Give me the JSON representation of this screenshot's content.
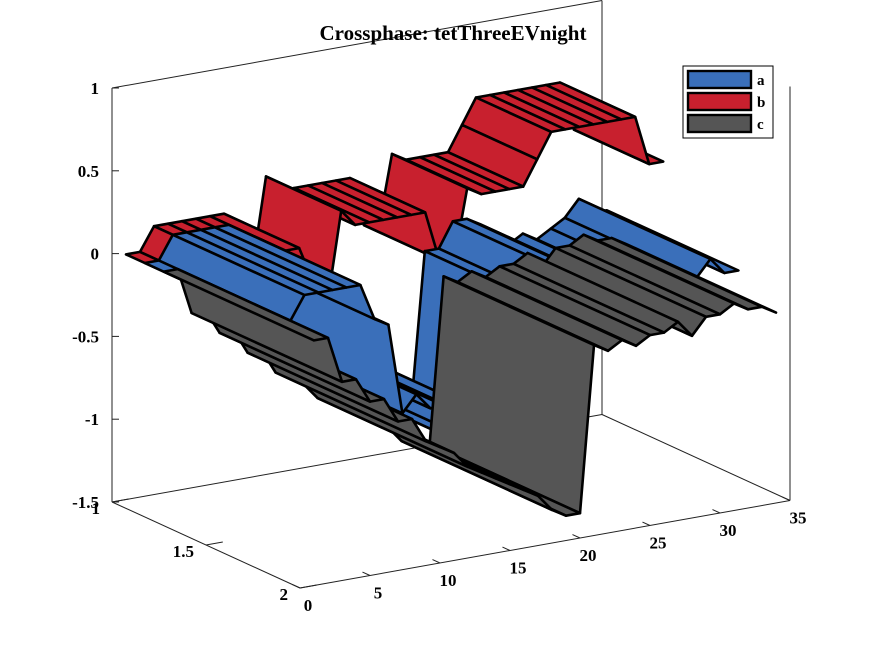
{
  "chart_data": {
    "type": "ribbon3d",
    "title": "Crossphase: tetThreeEVnight",
    "xlabel": "",
    "ylabel": "",
    "zlabel": "",
    "xlim": [
      0,
      35
    ],
    "ylim": [
      1,
      2
    ],
    "zlim": [
      -1.5,
      1
    ],
    "xticks": [
      "0",
      "5",
      "10",
      "15",
      "20",
      "25",
      "30",
      "35"
    ],
    "yticks": [
      "1",
      "1.5",
      "2"
    ],
    "zticks": [
      "-1.5",
      "-1",
      "-0.5",
      "0",
      "0.5",
      "1"
    ],
    "legend_position": "top-right",
    "series": [
      {
        "name": "a",
        "color": "#3a6fba",
        "y_front": 1.8,
        "y_back": 1.1,
        "x": [
          1,
          2,
          3,
          4,
          5,
          6,
          7,
          8,
          9,
          10,
          11,
          12,
          13,
          14,
          15,
          16,
          17,
          18,
          19,
          20,
          21,
          22,
          23,
          24,
          25,
          26,
          27,
          28,
          29,
          30,
          31,
          32,
          33,
          34
        ],
        "z": [
          -0.02,
          -0.02,
          0.12,
          0.12,
          0.12,
          0.12,
          0.12,
          -0.1,
          -0.15,
          -0.7,
          -0.6,
          -0.7,
          -0.7,
          -0.8,
          -0.8,
          -0.85,
          -0.85,
          -1.1,
          -1.2,
          -1.2,
          -0.25,
          -0.25,
          -0.1,
          -0.1,
          -0.15,
          -0.3,
          -0.3,
          -0.25,
          -0.3,
          -0.25,
          -0.2,
          -0.1,
          -0.2,
          -0.2
        ]
      },
      {
        "name": "b",
        "color": "#c8202e",
        "y_front": 1.4,
        "y_back": 1.0,
        "x": [
          1,
          2,
          3,
          4,
          5,
          6,
          7,
          8,
          9,
          10,
          11,
          12,
          13,
          14,
          15,
          16,
          17,
          18,
          19,
          20,
          21,
          22,
          23,
          24,
          25,
          26,
          27,
          28,
          29,
          30,
          31,
          32,
          33,
          34
        ],
        "z": [
          -0.02,
          -0.02,
          0.12,
          0.12,
          0.12,
          0.12,
          0.12,
          0.12,
          -0.1,
          -0.25,
          0.3,
          0.2,
          0.2,
          0.2,
          0.2,
          0.2,
          0.2,
          -0.1,
          -0.15,
          0.3,
          0.25,
          0.25,
          0.25,
          0.25,
          0.4,
          0.55,
          0.55,
          0.55,
          0.55,
          0.55,
          0.55,
          0.55,
          0.25,
          0.25
        ]
      },
      {
        "name": "c",
        "color": "#555555",
        "y_front": 2.0,
        "y_back": 1.2,
        "x": [
          1,
          2,
          3,
          4,
          5,
          6,
          7,
          8,
          9,
          10,
          11,
          12,
          13,
          14,
          15,
          16,
          17,
          18,
          19,
          20,
          21,
          22,
          23,
          24,
          25,
          26,
          27,
          28,
          29,
          30,
          31,
          32,
          33,
          34
        ],
        "z": [
          -0.02,
          -0.02,
          -0.3,
          -0.3,
          -0.45,
          -0.45,
          -0.6,
          -0.6,
          -0.75,
          -0.8,
          -0.85,
          -0.95,
          -1.0,
          -1.05,
          -1.1,
          -1.15,
          -1.2,
          -1.3,
          -1.35,
          -1.35,
          -0.35,
          -0.4,
          -0.35,
          -0.4,
          -0.35,
          -0.35,
          -0.3,
          -0.4,
          -0.3,
          -0.3,
          -0.25,
          -0.3,
          -0.3,
          -0.35
        ]
      }
    ]
  }
}
